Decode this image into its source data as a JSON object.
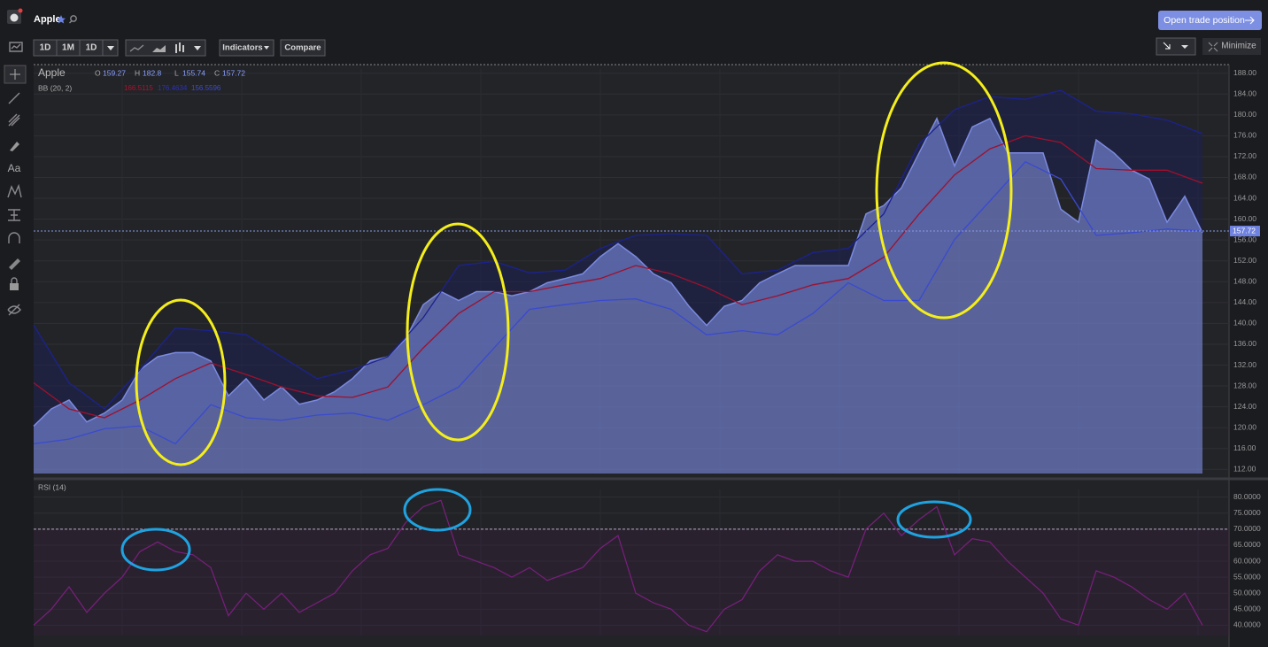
{
  "header": {
    "symbol": "Apple",
    "trade_button": "Open trade position"
  },
  "toolbar": {
    "intervals": [
      "1D",
      "1M",
      "1D"
    ],
    "indicators": "Indicators",
    "compare": "Compare",
    "minimize": "Minimize"
  },
  "sidebar": {
    "text_tool": "Aa"
  },
  "chart_data": [
    {
      "type": "area",
      "title": "Apple",
      "ohlc": [
        {
          "label": "O",
          "value": 159.27
        },
        {
          "label": "H",
          "value": 182.8
        },
        {
          "label": "L",
          "value": 155.74
        },
        {
          "label": "C",
          "value": 157.72
        }
      ],
      "series": [
        {
          "color": "#7b8ae0",
          "values": [
            120.3,
            123.6,
            125.3,
            121.1,
            122.8,
            125.3,
            131.1,
            133.6,
            134.4,
            134.4,
            132.8,
            126.1,
            129.4,
            125.3,
            127.8,
            124.5,
            125.3,
            126.9,
            129.4,
            132.8,
            133.6,
            137,
            143.6,
            146.1,
            144.4,
            146.1,
            146.1,
            145.3,
            146.1,
            147.8,
            148.6,
            149.5,
            152.8,
            155.3,
            152.8,
            149.5,
            147.8,
            143.3,
            139.6,
            143.3,
            144.4,
            147.8,
            149.5,
            151.1,
            151.1,
            151.1,
            151.1,
            161,
            162.6,
            166,
            172.7,
            179.3,
            170.2,
            177.7,
            179.3,
            172.7,
            172.7,
            172.7,
            161.9,
            159.4,
            175.2,
            172.7,
            169.4,
            167.7,
            159.4,
            164.4,
            157.4
          ]
        }
      ],
      "bollinger": {
        "label": "BB (20, 2)",
        "value_labels": [
          {
            "text": "166.5115",
            "color": "#b0102e"
          },
          {
            "text": "176.4634",
            "color": "#2a32b8"
          },
          {
            "text": "156.5596",
            "color": "#3a4ad0"
          }
        ],
        "upper": {
          "color": "#1b228f",
          "values": [
            139.7,
            128.6,
            123.6,
            131.1,
            139.1,
            138.6,
            137.8,
            133.6,
            129.4,
            131.1,
            133.6,
            141.1,
            151.1,
            151.9,
            149.7,
            150.2,
            154.4,
            156.9,
            157.2,
            156.9,
            149.5,
            150.2,
            153.6,
            154.4,
            161,
            174.4,
            181,
            183.5,
            183,
            184.7,
            180.7,
            180.2,
            179,
            176.4
          ]
        },
        "middle": {
          "color": "#a0102e",
          "values": [
            128.6,
            123.6,
            121.9,
            125.3,
            129.4,
            132.4,
            130.2,
            127.8,
            126.1,
            125.8,
            127.8,
            135.3,
            141.9,
            146.1,
            146.1,
            147.4,
            148.6,
            151.1,
            149.5,
            146.9,
            143.6,
            145.3,
            147.4,
            148.6,
            152.7,
            161,
            168.5,
            173.5,
            176,
            174.7,
            169.7,
            169.4,
            169.4,
            166.9
          ]
        },
        "lower": {
          "color": "#3a4ad0",
          "values": [
            116.9,
            117.8,
            119.8,
            120.3,
            116.9,
            124.4,
            121.9,
            121.4,
            122.4,
            122.8,
            121.4,
            124.4,
            127.8,
            135.3,
            142.7,
            143.6,
            144.4,
            144.7,
            142.7,
            137.8,
            138.6,
            137.8,
            141.9,
            147.8,
            144.4,
            144.4,
            156.1,
            163.5,
            171,
            167.7,
            156.9,
            157.4,
            158.1,
            157.7
          ]
        }
      },
      "last_price": 157.72,
      "ylim": [
        111.2,
        188.8
      ],
      "yticks": [
        {
          "value": 112,
          "label": "112.00"
        },
        {
          "value": 116,
          "label": "116.00"
        },
        {
          "value": 120,
          "label": "120.00"
        },
        {
          "value": 124,
          "label": "124.00"
        },
        {
          "value": 128,
          "label": "128.00"
        },
        {
          "value": 132,
          "label": "132.00"
        },
        {
          "value": 136,
          "label": "136.00"
        },
        {
          "value": 140,
          "label": "140.00"
        },
        {
          "value": 144,
          "label": "144.00"
        },
        {
          "value": 148,
          "label": "148.00"
        },
        {
          "value": 152,
          "label": "152.00"
        },
        {
          "value": 156,
          "label": "156.00"
        },
        {
          "value": 160,
          "label": "160.00"
        },
        {
          "value": 164,
          "label": "164.00"
        },
        {
          "value": 168,
          "label": "168.00"
        },
        {
          "value": 172,
          "label": "172.00"
        },
        {
          "value": 176,
          "label": "176.00"
        },
        {
          "value": 180,
          "label": "180.00"
        },
        {
          "value": 184,
          "label": "184.00"
        },
        {
          "value": 188,
          "label": "188.00"
        }
      ],
      "grid": true
    },
    {
      "type": "line",
      "title": "RSI (14)",
      "series": [
        {
          "color": "#7a1f7e",
          "values": [
            40,
            45,
            52,
            44,
            50,
            55,
            63,
            66,
            63,
            62,
            58,
            43,
            50,
            45,
            50,
            44,
            47,
            50,
            57,
            62,
            64,
            72,
            77,
            79,
            62,
            60,
            58,
            55,
            58,
            54,
            56,
            58,
            64,
            68,
            50,
            47,
            45,
            40,
            38,
            45,
            48,
            57,
            62,
            60,
            60,
            57,
            55,
            70,
            75,
            68,
            73,
            77,
            62,
            67,
            66,
            60,
            55,
            50,
            42,
            40,
            57,
            55,
            52,
            48,
            45,
            50,
            40
          ]
        }
      ],
      "level": 70,
      "ylim": [
        36.8,
        82.4
      ],
      "yticks": [
        {
          "value": 40,
          "label": "40.0000"
        },
        {
          "value": 45,
          "label": "45.0000"
        },
        {
          "value": 50,
          "label": "50.0000"
        },
        {
          "value": 55,
          "label": "55.0000"
        },
        {
          "value": 60,
          "label": "60.0000"
        },
        {
          "value": 65,
          "label": "65.0000"
        },
        {
          "value": 70,
          "label": "70.0000"
        },
        {
          "value": 75,
          "label": "75.0000"
        },
        {
          "value": 80,
          "label": "80.0000"
        }
      ],
      "grid": true
    }
  ]
}
